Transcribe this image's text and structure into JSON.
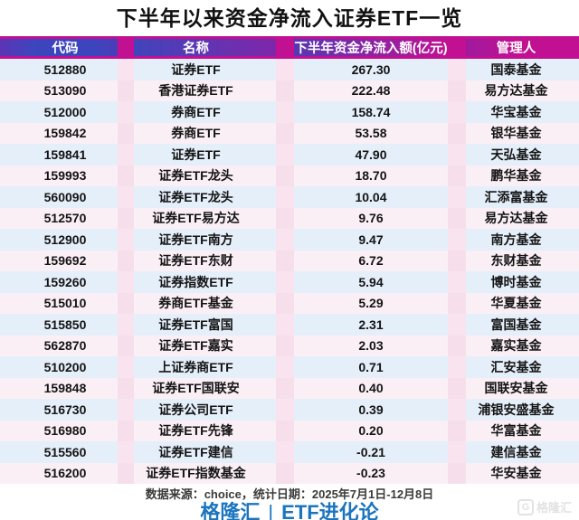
{
  "title": "下半年以来资金净流入证券ETF一览",
  "table": {
    "headers": [
      "代码",
      "名称",
      "下半年资金净流入额(亿元)",
      "管理人"
    ],
    "rows": [
      [
        "512880",
        "证券ETF",
        "267.30",
        "国泰基金"
      ],
      [
        "513090",
        "香港证券ETF",
        "222.48",
        "易方达基金"
      ],
      [
        "512000",
        "券商ETF",
        "158.74",
        "华宝基金"
      ],
      [
        "159842",
        "券商ETF",
        "53.58",
        "银华基金"
      ],
      [
        "159841",
        "证券ETF",
        "47.90",
        "天弘基金"
      ],
      [
        "159993",
        "证券ETF龙头",
        "18.70",
        "鹏华基金"
      ],
      [
        "560090",
        "证券ETF龙头",
        "10.04",
        "汇添富基金"
      ],
      [
        "512570",
        "证券ETF易方达",
        "9.76",
        "易方达基金"
      ],
      [
        "512900",
        "证券ETF南方",
        "9.47",
        "南方基金"
      ],
      [
        "159692",
        "证券ETF东财",
        "6.72",
        "东财基金"
      ],
      [
        "159260",
        "证券指数ETF",
        "5.94",
        "博时基金"
      ],
      [
        "515010",
        "券商ETF基金",
        "5.29",
        "华夏基金"
      ],
      [
        "515850",
        "证券ETF富国",
        "2.31",
        "富国基金"
      ],
      [
        "562870",
        "证券ETF嘉实",
        "2.03",
        "嘉实基金"
      ],
      [
        "510200",
        "上证券商ETF",
        "0.71",
        "汇安基金"
      ],
      [
        "159848",
        "证券ETF国联安",
        "0.40",
        "国联安基金"
      ],
      [
        "516730",
        "证券公司ETF",
        "0.39",
        "浦银安盛基金"
      ],
      [
        "516980",
        "证券ETF先锋",
        "0.20",
        "华富基金"
      ],
      [
        "515560",
        "证券ETF建信",
        "-0.21",
        "建信基金"
      ],
      [
        "516200",
        "证券ETF指数基金",
        "-0.23",
        "华安基金"
      ]
    ]
  },
  "footer": {
    "source": "数据来源：choice，统计日期：2025年7月1日-12月8日",
    "brand_left": "格隆汇",
    "brand_sep": "|",
    "brand_right": "ETF进化论",
    "watermark_g": "G",
    "watermark_text": "格隆汇"
  },
  "colors": {
    "header_blue": "#3d45be",
    "header_magenta": "#c11092",
    "row_blue": "#e5effa",
    "row_pink": "#fbeff6",
    "band_pink": "#f8e3ee",
    "brand_blue": "#1b74be",
    "title_color": "#111111"
  }
}
